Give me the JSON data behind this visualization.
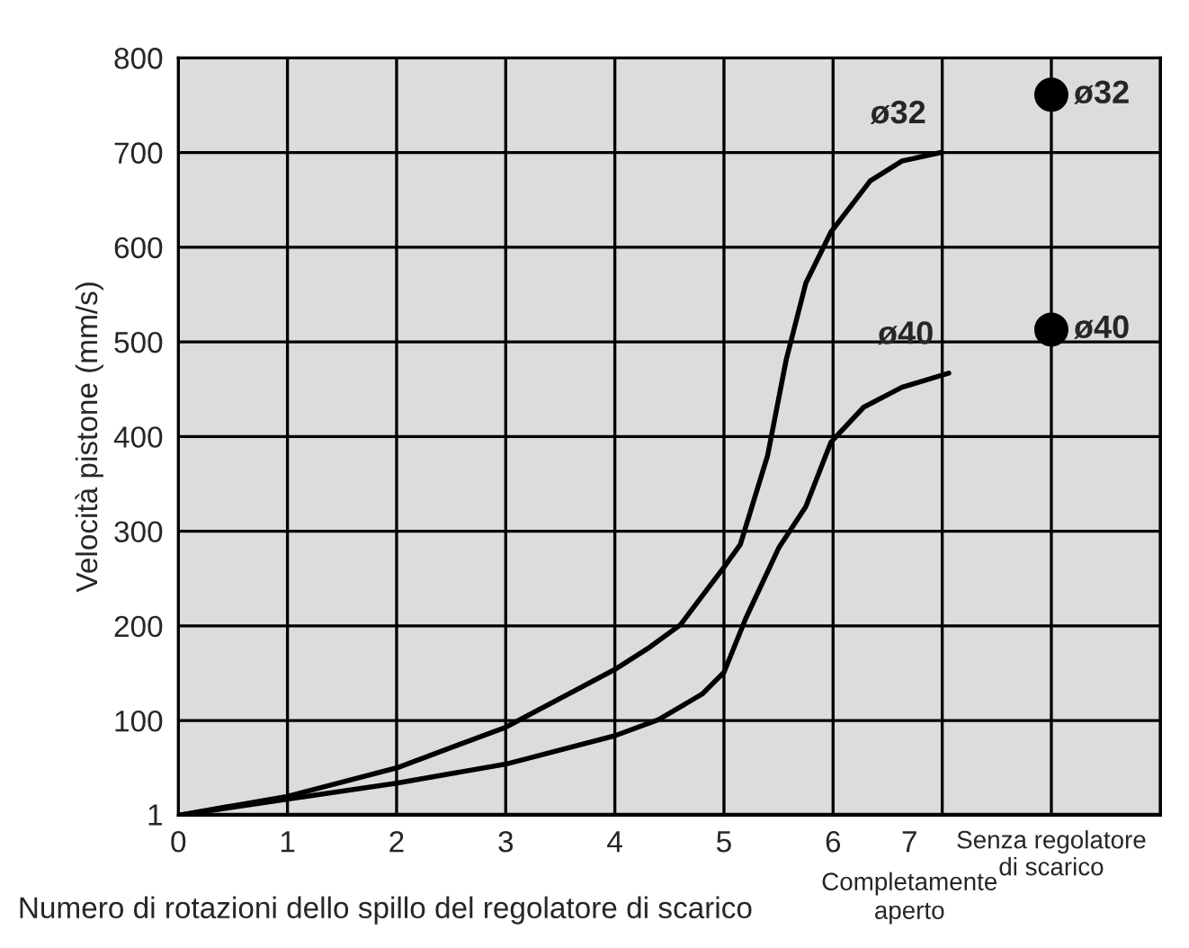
{
  "chart_data": {
    "type": "line",
    "xlabel": "Numero di rotazioni dello spillo del regolatore di scarico",
    "ylabel": "Velocità pistone (mm/s)",
    "xlim": [
      0,
      9
    ],
    "ylim": [
      0,
      800
    ],
    "xticks": [
      0,
      1,
      2,
      3,
      4,
      5,
      6,
      {
        "value": 6.7,
        "label": "7"
      },
      {
        "value": 8,
        "label": "Senza regolatore\ndi scarico"
      }
    ],
    "yticks": [
      1,
      100,
      200,
      300,
      400,
      500,
      600,
      700,
      800
    ],
    "grid": true,
    "marker": "none",
    "line_style": "solid",
    "annotations": [
      "Completamente\naperto"
    ],
    "series": [
      {
        "name": "ø32",
        "color": "#000000",
        "x": [
          0,
          1,
          2,
          3,
          4,
          4.3,
          4.6,
          5,
          5.15,
          5.4,
          5.57,
          5.75,
          5.98,
          6.34,
          6.63,
          6.99
        ],
        "values": [
          0,
          20,
          50,
          93,
          154,
          176,
          201,
          262,
          286,
          380,
          481,
          562,
          616,
          670,
          691,
          700
        ]
      },
      {
        "name": "ø40",
        "color": "#000000",
        "x": [
          0,
          1,
          2,
          3,
          4,
          4.4,
          4.8,
          5,
          5.2,
          5.5,
          5.75,
          5.98,
          6.28,
          6.63,
          7.06
        ],
        "values": [
          0,
          17,
          34,
          54,
          84,
          101,
          128,
          151,
          208,
          282,
          326,
          394,
          431,
          452,
          467
        ]
      },
      {
        "name": "ø32",
        "type": "scatter",
        "marker": "circle",
        "color": "#000000",
        "x": [
          8
        ],
        "values": [
          761
        ]
      },
      {
        "name": "ø40",
        "type": "scatter",
        "marker": "circle",
        "color": "#000000",
        "x": [
          8
        ],
        "values": [
          513
        ]
      }
    ]
  }
}
